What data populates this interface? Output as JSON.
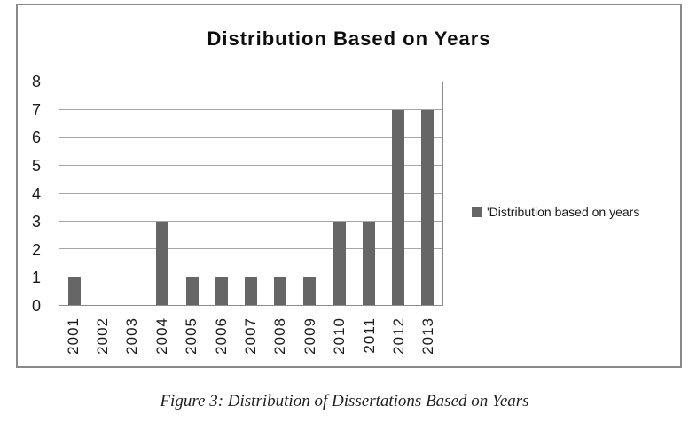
{
  "chart_data": {
    "type": "bar",
    "title": "Distribution Based on Years",
    "categories": [
      "2001",
      "2002",
      "2003",
      "2004",
      "2005",
      "2006",
      "2007",
      "2008",
      "2009",
      "2010",
      "2011",
      "2012",
      "2013"
    ],
    "values": [
      1,
      0,
      0,
      3,
      1,
      1,
      1,
      1,
      1,
      3,
      3,
      7,
      7
    ],
    "series_name": "'Distribution based on years",
    "xlabel": "",
    "ylabel": "",
    "ylim": [
      0,
      8
    ],
    "yticks": [
      0,
      1,
      2,
      3,
      4,
      5,
      6,
      7,
      8
    ],
    "grid": "horizontal",
    "legend_position": "right",
    "bar_color": "#666666"
  },
  "legend": {
    "label": "'Distribution based on years",
    "swatch_color": "#666666"
  },
  "caption": "Figure 3: Distribution of Dissertations Based on Years",
  "colors": {
    "bar": "#666666",
    "gridline": "#a6a6a6",
    "plot_border": "#8c8c8c",
    "frame_border": "#8a8a8a",
    "text": "#1a1a1a"
  }
}
